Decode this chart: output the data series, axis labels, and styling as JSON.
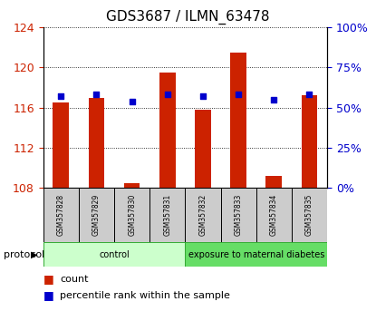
{
  "title": "GDS3687 / ILMN_63478",
  "samples": [
    "GSM357828",
    "GSM357829",
    "GSM357830",
    "GSM357831",
    "GSM357832",
    "GSM357833",
    "GSM357834",
    "GSM357835"
  ],
  "count_values": [
    116.5,
    117.0,
    108.5,
    119.5,
    115.8,
    121.5,
    109.2,
    117.2
  ],
  "percentile_values": [
    57,
    58,
    54,
    58,
    57,
    58,
    55,
    58
  ],
  "ylim_left": [
    108,
    124
  ],
  "ylim_right": [
    0,
    100
  ],
  "yticks_left": [
    108,
    112,
    116,
    120,
    124
  ],
  "yticks_right": [
    0,
    25,
    50,
    75,
    100
  ],
  "groups": [
    {
      "label": "control",
      "indices": [
        0,
        1,
        2,
        3
      ],
      "color": "#ccffcc"
    },
    {
      "label": "exposure to maternal diabetes",
      "indices": [
        4,
        5,
        6,
        7
      ],
      "color": "#66dd66"
    }
  ],
  "protocol_label": "protocol",
  "bar_color": "#cc2200",
  "dot_color": "#0000cc",
  "bar_bottom": 108,
  "tick_label_color_left": "#cc2200",
  "tick_label_color_right": "#0000cc",
  "legend_count_label": "count",
  "legend_percentile_label": "percentile rank within the sample",
  "title_fontsize": 11,
  "bar_width": 0.45
}
